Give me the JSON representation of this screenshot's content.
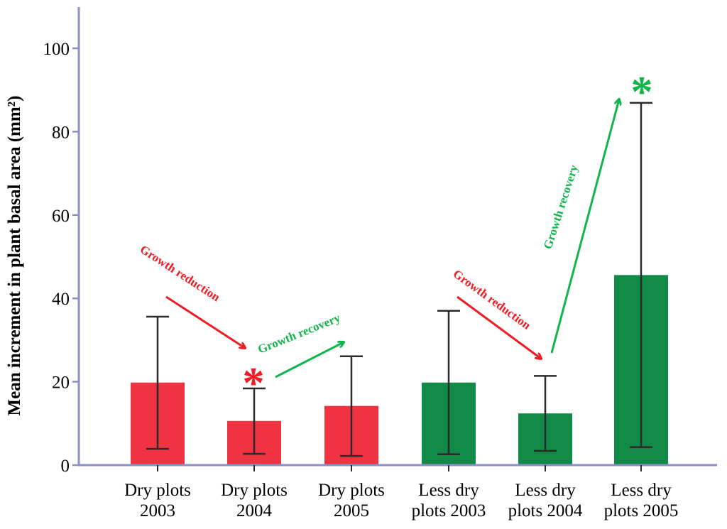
{
  "chart_data": {
    "type": "bar",
    "title": "",
    "xlabel": "",
    "ylabel": "Mean increment in plant basal area (mm²)",
    "ylim": [
      0,
      110
    ],
    "yticks": [
      "0",
      "20",
      "40",
      "60",
      "80",
      "100"
    ],
    "ytick_values": [
      0,
      20,
      40,
      60,
      80,
      100
    ],
    "grid": false,
    "categories": [
      {
        "line1": "Dry plots",
        "line2": "2003"
      },
      {
        "line1": "Dry plots",
        "line2": "2004"
      },
      {
        "line1": "Dry plots",
        "line2": "2005"
      },
      {
        "line1": "Less dry",
        "line2": "plots 2003"
      },
      {
        "line1": "Less dry",
        "line2": "plots 2004"
      },
      {
        "line1": "Less dry",
        "line2": "plots 2005"
      }
    ],
    "values": [
      19.8,
      10.6,
      14.2,
      19.8,
      12.4,
      45.6
    ],
    "error_low": [
      3.9,
      2.7,
      2.2,
      2.6,
      3.4,
      4.3
    ],
    "error_high": [
      35.6,
      18.4,
      26.1,
      37.0,
      21.4,
      86.9
    ],
    "bar_colors": [
      "#ef3340",
      "#ef3340",
      "#ef3340",
      "#128a47",
      "#128a47",
      "#128a47"
    ],
    "annotations": {
      "reduction_1": "Growth reduction",
      "recovery_1": "Growth recovery",
      "reduction_2": "Growth reduction",
      "recovery_2": "Growth recovery",
      "star_red": "*",
      "star_green": "*"
    },
    "colors": {
      "red": "#ef3340",
      "green": "#128a47",
      "arrow_red": "#ee1c24",
      "arrow_green": "#12b54b",
      "axis": "#8a8fc4"
    }
  }
}
